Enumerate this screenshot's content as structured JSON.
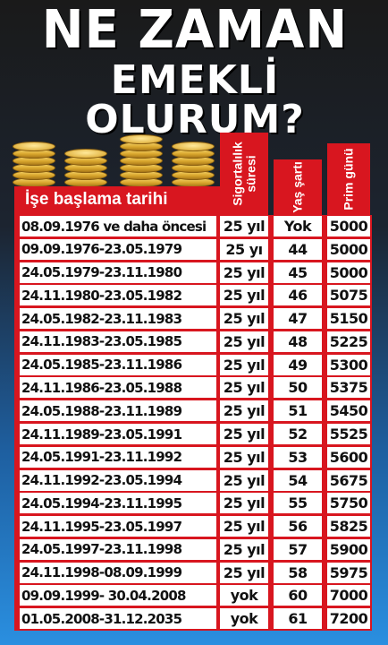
{
  "title": {
    "line1": "NE ZAMAN",
    "line2": "EMEKLİ OLURUM?"
  },
  "headers": {
    "date": "İşe başlama tarihi",
    "sigorta": "Sigortalılık süresi",
    "yas": "Yaş şartı",
    "prim": "Prim günü"
  },
  "colors": {
    "accent": "#d8161f",
    "background_top": "#1a1a1a",
    "background_bottom": "#2a8fe0"
  },
  "rows": [
    {
      "date": "08.09.1976 ve daha öncesi",
      "sigorta": "25 yıl",
      "yas": "Yok",
      "prim": "5000"
    },
    {
      "date": "09.09.1976-23.05.1979",
      "sigorta": "25 yı",
      "yas": "44",
      "prim": "5000"
    },
    {
      "date": "24.05.1979-23.11.1980",
      "sigorta": "25 yıl",
      "yas": "45",
      "prim": "5000"
    },
    {
      "date": "24.11.1980-23.05.1982",
      "sigorta": "25 yıl",
      "yas": "46",
      "prim": "5075"
    },
    {
      "date": "24.05.1982-23.11.1983",
      "sigorta": "25 yıl",
      "yas": "47",
      "prim": "5150"
    },
    {
      "date": "24.11.1983-23.05.1985",
      "sigorta": "25 yıl",
      "yas": "48",
      "prim": "5225"
    },
    {
      "date": "24.05.1985-23.11.1986",
      "sigorta": "25 yıl",
      "yas": "49",
      "prim": "5300"
    },
    {
      "date": "24.11.1986-23.05.1988",
      "sigorta": "25 yıl",
      "yas": "50",
      "prim": "5375"
    },
    {
      "date": "24.05.1988-23.11.1989",
      "sigorta": "25 yıl",
      "yas": "51",
      "prim": "5450"
    },
    {
      "date": "24.11.1989-23.05.1991",
      "sigorta": "25 yıl",
      "yas": "52",
      "prim": "5525"
    },
    {
      "date": "24.05.1991-23.11.1992",
      "sigorta": "25 yıl",
      "yas": "53",
      "prim": "5600"
    },
    {
      "date": "24.11.1992-23.05.1994",
      "sigorta": "25 yıl",
      "yas": "54",
      "prim": "5675"
    },
    {
      "date": "24.05.1994-23.11.1995",
      "sigorta": "25 yıl",
      "yas": "55",
      "prim": "5750"
    },
    {
      "date": "24.11.1995-23.05.1997",
      "sigorta": "25 yıl",
      "yas": "56",
      "prim": "5825"
    },
    {
      "date": "24.05.1997-23.11.1998",
      "sigorta": "25 yıl",
      "yas": "57",
      "prim": "5900"
    },
    {
      "date": "24.11.1998-08.09.1999",
      "sigorta": "25 yıl",
      "yas": "58",
      "prim": "5975"
    },
    {
      "date": "09.09.1999- 30.04.2008",
      "sigorta": "yok",
      "yas": "60",
      "prim": "7000"
    },
    {
      "date": "01.05.2008-31.12.2035",
      "sigorta": "yok",
      "yas": "61",
      "prim": "7200"
    }
  ]
}
